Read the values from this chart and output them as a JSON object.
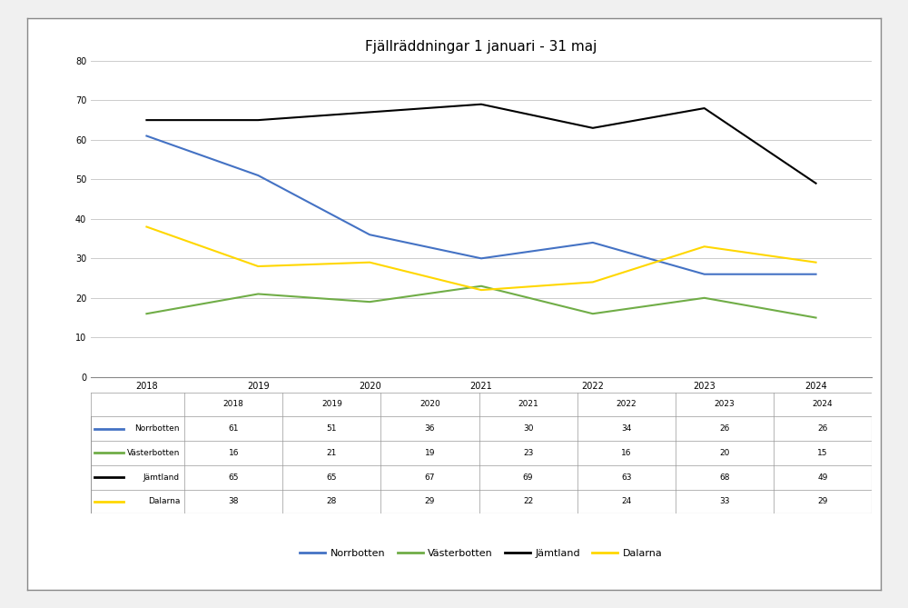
{
  "title": "Fjällräddningar 1 januari - 31 maj",
  "years": [
    2018,
    2019,
    2020,
    2021,
    2022,
    2023,
    2024
  ],
  "series": {
    "Norrbotten": [
      61,
      51,
      36,
      30,
      34,
      26,
      26
    ],
    "Västerbotten": [
      16,
      21,
      19,
      23,
      16,
      20,
      15
    ],
    "Jämtland": [
      65,
      65,
      67,
      69,
      63,
      68,
      49
    ],
    "Dalarna": [
      38,
      28,
      29,
      22,
      24,
      33,
      29
    ]
  },
  "colors": {
    "Norrbotten": "#4472C4",
    "Västerbotten": "#70AD47",
    "Jämtland": "#000000",
    "Dalarna": "#FFD700"
  },
  "ylim": [
    0,
    80
  ],
  "yticks": [
    0,
    10,
    20,
    30,
    40,
    50,
    60,
    70,
    80
  ],
  "background_color": "#FFFFFF",
  "plot_bg_color": "#FFFFFF",
  "outer_bg_color": "#F0F0F0",
  "grid_color": "#CCCCCC",
  "border_color": "#888888",
  "title_fontsize": 11,
  "tick_fontsize": 7,
  "table_fontsize": 6.5,
  "legend_fontsize": 8
}
